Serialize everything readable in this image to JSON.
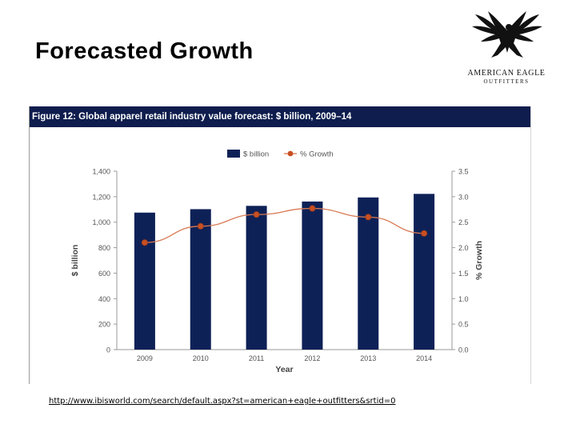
{
  "slide": {
    "title": "Forecasted Growth",
    "source_link": "http://www.ibisworld.com/search/default.aspx?st=american+eagle+outfitters&srtid=0"
  },
  "logo": {
    "line1": "AMERICAN EAGLE",
    "line2": "OUTFITTERS"
  },
  "colors": {
    "bar": "#0e2157",
    "line": "#d97a55",
    "marker": "#c84f24",
    "header_bg": "#0e1d4d"
  },
  "chart_data": {
    "type": "bar",
    "title": "Figure 12:  Global apparel retail industry value forecast: $ billion, 2009–14",
    "categories": [
      "2009",
      "2010",
      "2011",
      "2012",
      "2013",
      "2014"
    ],
    "series": [
      {
        "name": "$ billion",
        "type": "bar",
        "axis": "left",
        "values": [
          1075,
          1102,
          1128,
          1162,
          1194,
          1222
        ]
      },
      {
        "name": "% Growth",
        "type": "line",
        "axis": "right",
        "values": [
          2.1,
          2.42,
          2.65,
          2.77,
          2.6,
          2.28
        ]
      }
    ],
    "xlabel": "Year",
    "ylabel": "$ billion",
    "y2label": "% Growth",
    "ylim": [
      0,
      1400
    ],
    "y2lim": [
      0,
      3.5
    ],
    "yticks": [
      "0",
      "200",
      "400",
      "600",
      "800",
      "1,000",
      "1,200",
      "1,400"
    ],
    "y2ticks": [
      "0.0",
      "0.5",
      "1.0",
      "1.5",
      "2.0",
      "2.5",
      "3.0",
      "3.5"
    ],
    "legend_position": "top-center",
    "grid": false
  }
}
